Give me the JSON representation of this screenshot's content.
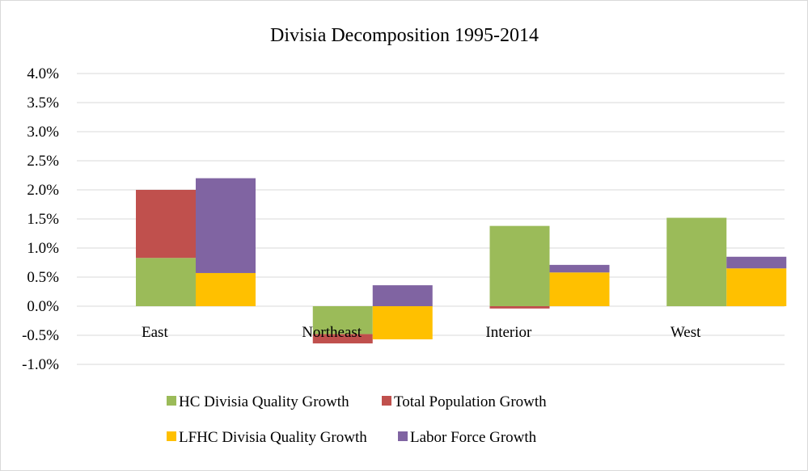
{
  "chart_data": {
    "type": "bar",
    "stacking": "stacked, two columns per category",
    "title": "Divisia Decomposition 1995-2014",
    "xlabel": "",
    "ylabel": "",
    "ylim": [
      -0.01,
      0.04
    ],
    "y_ticks": [
      "4.0%",
      "3.5%",
      "3.0%",
      "2.5%",
      "2.0%",
      "1.5%",
      "1.0%",
      "0.5%",
      "0.0%",
      "-0.5%",
      "-1.0%"
    ],
    "y_tick_values": [
      0.04,
      0.035,
      0.03,
      0.025,
      0.02,
      0.015,
      0.01,
      0.005,
      0.0,
      -0.005,
      -0.01
    ],
    "grid": true,
    "legend_position": "bottom",
    "categories": [
      "East",
      "Northeast",
      "Interior",
      "West"
    ],
    "series": [
      {
        "name": "HC Divisia Quality Growth",
        "column": 1,
        "color": "#9BBB59",
        "values": [
          0.0083,
          -0.0048,
          0.0138,
          0.0152
        ]
      },
      {
        "name": "Total Population Growth",
        "column": 1,
        "color": "#C0504D",
        "values": [
          0.0117,
          -0.0016,
          -0.0004,
          0.0
        ]
      },
      {
        "name": "LFHC Divisia Quality Growth",
        "column": 2,
        "color": "#FFC000",
        "values": [
          0.0057,
          -0.0057,
          0.0058,
          0.0065
        ]
      },
      {
        "name": "Labor Force Growth",
        "column": 2,
        "color": "#8064A2",
        "values": [
          0.0163,
          0.0036,
          0.0013,
          0.002
        ]
      }
    ],
    "legend_rows": [
      [
        "HC Divisia Quality Growth",
        "Total Population Growth"
      ],
      [
        "LFHC Divisia Quality Growth",
        "Labor Force Growth"
      ]
    ]
  }
}
